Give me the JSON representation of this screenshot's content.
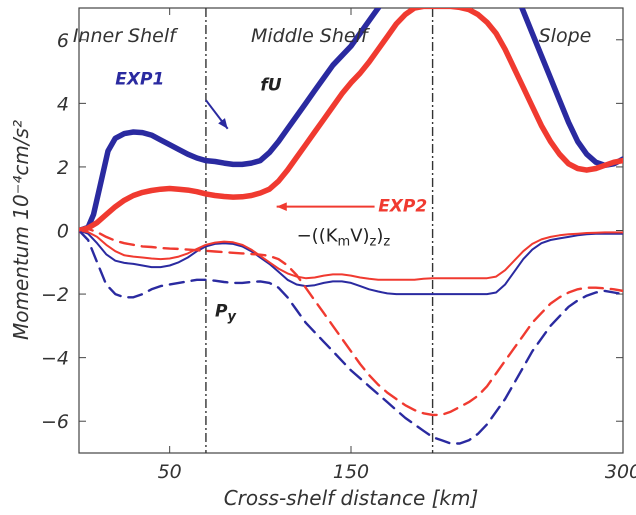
{
  "chart_data": {
    "type": "line",
    "xlabel": "Cross-shelf distance [km]",
    "ylabel": "Momentum 10⁻⁴cm/s²",
    "xlim": [
      0,
      300
    ],
    "ylim": [
      -7,
      7
    ],
    "x_ticks": [
      {
        "value": 50,
        "label": "50"
      },
      {
        "value": 150,
        "label": "150"
      },
      {
        "value": 300,
        "label": "300"
      }
    ],
    "y_ticks": [
      {
        "value": 6,
        "label": "6"
      },
      {
        "value": 4,
        "label": "4"
      },
      {
        "value": 2,
        "label": "2"
      },
      {
        "value": 0,
        "label": "0"
      },
      {
        "value": -2,
        "label": "−2"
      },
      {
        "value": -4,
        "label": "−4"
      },
      {
        "value": -6,
        "label": "−6"
      }
    ],
    "grid": false,
    "dividers": [
      70,
      195
    ],
    "regions": [
      {
        "label": "Inner Shelf",
        "x": 25
      },
      {
        "label": "Middle Shelf",
        "x": 127
      },
      {
        "label": "Slope",
        "x": 268
      }
    ],
    "colors": {
      "exp1": "#2a2aa0",
      "exp2": "#f03a30"
    },
    "series": [
      {
        "group": "fU",
        "experiment": "EXP1",
        "style": "thick-solid",
        "x": [
          0,
          5,
          8,
          12,
          16,
          20,
          25,
          30,
          35,
          40,
          45,
          50,
          55,
          60,
          65,
          70,
          75,
          80,
          85,
          90,
          95,
          100,
          105,
          110,
          115,
          120,
          125,
          130,
          135,
          140,
          145,
          150,
          155,
          160,
          165,
          170,
          175,
          180
        ],
        "y": [
          0,
          0.1,
          0.5,
          1.5,
          2.5,
          2.9,
          3.05,
          3.1,
          3.08,
          3.0,
          2.85,
          2.7,
          2.55,
          2.4,
          2.28,
          2.2,
          2.17,
          2.12,
          2.08,
          2.08,
          2.12,
          2.2,
          2.45,
          2.8,
          3.2,
          3.6,
          4.0,
          4.4,
          4.8,
          5.2,
          5.5,
          5.8,
          6.2,
          6.6,
          7.0,
          7.4,
          7.8,
          8.2
        ]
      },
      {
        "group": "fU",
        "experiment": "EXP1",
        "style": "thick-solid",
        "x": [
          240,
          245,
          250,
          255,
          260,
          265,
          270,
          275,
          280,
          285,
          290,
          295,
          300
        ],
        "y": [
          7.6,
          6.9,
          6.2,
          5.5,
          4.8,
          4.1,
          3.4,
          2.8,
          2.4,
          2.15,
          2.05,
          2.1,
          2.25
        ]
      },
      {
        "group": "fU",
        "experiment": "EXP2",
        "style": "thick-solid",
        "x": [
          0,
          5,
          10,
          15,
          20,
          25,
          30,
          35,
          40,
          45,
          50,
          55,
          60,
          65,
          70,
          75,
          80,
          85,
          90,
          95,
          100,
          105,
          110,
          115,
          120,
          125,
          130,
          135,
          140,
          145,
          150,
          155,
          160,
          165,
          170,
          175,
          180,
          185,
          190,
          195,
          200,
          205,
          210,
          215,
          220,
          225,
          230,
          235,
          240,
          245,
          250,
          255,
          260,
          265,
          270,
          275,
          280,
          285,
          290,
          295,
          300
        ],
        "y": [
          0,
          0.08,
          0.25,
          0.5,
          0.75,
          0.95,
          1.1,
          1.2,
          1.26,
          1.3,
          1.32,
          1.3,
          1.27,
          1.22,
          1.15,
          1.1,
          1.07,
          1.05,
          1.06,
          1.1,
          1.18,
          1.3,
          1.55,
          1.9,
          2.3,
          2.7,
          3.1,
          3.5,
          3.9,
          4.3,
          4.65,
          4.95,
          5.3,
          5.7,
          6.1,
          6.5,
          6.8,
          7.0,
          7.05,
          7.05,
          7.05,
          7.05,
          7.02,
          6.95,
          6.8,
          6.55,
          6.2,
          5.7,
          5.1,
          4.5,
          3.9,
          3.3,
          2.8,
          2.4,
          2.1,
          1.95,
          1.9,
          1.95,
          2.05,
          2.15,
          2.2
        ]
      },
      {
        "group": "-((KmV)z)z",
        "experiment": "EXP1",
        "style": "thin-solid",
        "x": [
          0,
          5,
          10,
          15,
          20,
          25,
          30,
          35,
          40,
          45,
          50,
          55,
          60,
          65,
          70,
          75,
          80,
          85,
          90,
          95,
          100,
          105,
          110,
          115,
          120,
          125,
          130,
          135,
          140,
          145,
          150,
          155,
          160,
          165,
          170,
          175,
          180,
          185,
          190,
          195,
          200,
          205,
          210,
          215,
          220,
          225,
          230,
          235,
          240,
          245,
          250,
          255,
          260,
          265,
          270,
          275,
          280,
          285,
          290,
          295,
          300
        ],
        "y": [
          0,
          -0.1,
          -0.4,
          -0.75,
          -0.95,
          -1.02,
          -1.05,
          -1.1,
          -1.15,
          -1.15,
          -1.1,
          -1.0,
          -0.85,
          -0.65,
          -0.5,
          -0.42,
          -0.4,
          -0.42,
          -0.5,
          -0.65,
          -0.85,
          -1.05,
          -1.3,
          -1.55,
          -1.7,
          -1.75,
          -1.72,
          -1.65,
          -1.6,
          -1.6,
          -1.65,
          -1.75,
          -1.85,
          -1.92,
          -1.98,
          -2.0,
          -2.0,
          -2.0,
          -2.0,
          -2.0,
          -2.0,
          -2.0,
          -2.0,
          -2.0,
          -2.0,
          -2.0,
          -1.95,
          -1.7,
          -1.3,
          -0.9,
          -0.6,
          -0.4,
          -0.3,
          -0.25,
          -0.2,
          -0.15,
          -0.12,
          -0.1,
          -0.1,
          -0.1,
          -0.1
        ]
      },
      {
        "group": "-((KmV)z)z",
        "experiment": "EXP2",
        "style": "thin-solid",
        "x": [
          0,
          5,
          10,
          15,
          20,
          25,
          30,
          35,
          40,
          45,
          50,
          55,
          60,
          65,
          70,
          75,
          80,
          85,
          90,
          95,
          100,
          105,
          110,
          115,
          120,
          125,
          130,
          135,
          140,
          145,
          150,
          155,
          160,
          165,
          170,
          175,
          180,
          185,
          190,
          195,
          200,
          205,
          210,
          215,
          220,
          225,
          230,
          235,
          240,
          245,
          250,
          255,
          260,
          265,
          270,
          275,
          280,
          285,
          290,
          295,
          300
        ],
        "y": [
          0,
          -0.05,
          -0.2,
          -0.45,
          -0.65,
          -0.78,
          -0.82,
          -0.85,
          -0.88,
          -0.9,
          -0.88,
          -0.82,
          -0.72,
          -0.58,
          -0.45,
          -0.38,
          -0.35,
          -0.37,
          -0.45,
          -0.6,
          -0.8,
          -1.0,
          -1.2,
          -1.35,
          -1.45,
          -1.5,
          -1.48,
          -1.42,
          -1.38,
          -1.38,
          -1.42,
          -1.48,
          -1.52,
          -1.55,
          -1.55,
          -1.55,
          -1.55,
          -1.55,
          -1.52,
          -1.5,
          -1.5,
          -1.5,
          -1.5,
          -1.5,
          -1.5,
          -1.5,
          -1.45,
          -1.25,
          -0.95,
          -0.65,
          -0.42,
          -0.28,
          -0.2,
          -0.15,
          -0.12,
          -0.1,
          -0.08,
          -0.07,
          -0.06,
          -0.06,
          -0.06
        ]
      },
      {
        "group": "Py",
        "experiment": "EXP1",
        "style": "dashed",
        "x": [
          0,
          5,
          10,
          15,
          20,
          25,
          30,
          35,
          40,
          45,
          50,
          55,
          60,
          65,
          70,
          75,
          80,
          85,
          90,
          95,
          100,
          105,
          110,
          115,
          120,
          125,
          130,
          135,
          140,
          145,
          150,
          155,
          160,
          165,
          170,
          175,
          180,
          185,
          190,
          195,
          200,
          205,
          210,
          215,
          220,
          225,
          230,
          235,
          240,
          245,
          250,
          255,
          260,
          265,
          270,
          275,
          280,
          285,
          290,
          295,
          300
        ],
        "y": [
          0,
          -0.3,
          -1.0,
          -1.7,
          -2.0,
          -2.1,
          -2.1,
          -2.0,
          -1.85,
          -1.75,
          -1.7,
          -1.65,
          -1.6,
          -1.55,
          -1.55,
          -1.58,
          -1.62,
          -1.65,
          -1.65,
          -1.62,
          -1.6,
          -1.65,
          -1.8,
          -2.1,
          -2.5,
          -2.9,
          -3.2,
          -3.5,
          -3.8,
          -4.1,
          -4.4,
          -4.65,
          -4.9,
          -5.15,
          -5.4,
          -5.65,
          -5.9,
          -6.1,
          -6.3,
          -6.5,
          -6.6,
          -6.7,
          -6.7,
          -6.6,
          -6.4,
          -6.1,
          -5.7,
          -5.3,
          -4.8,
          -4.3,
          -3.8,
          -3.4,
          -3.0,
          -2.7,
          -2.4,
          -2.2,
          -2.05,
          -1.95,
          -1.9,
          -1.95,
          -2.0
        ]
      },
      {
        "group": "Py",
        "experiment": "EXP2",
        "style": "dashed",
        "x": [
          0,
          5,
          10,
          15,
          20,
          25,
          30,
          35,
          40,
          45,
          50,
          55,
          60,
          65,
          70,
          75,
          80,
          85,
          90,
          95,
          100,
          105,
          110,
          115,
          120,
          125,
          130,
          135,
          140,
          145,
          150,
          155,
          160,
          165,
          170,
          175,
          180,
          185,
          190,
          195,
          200,
          205,
          210,
          215,
          220,
          225,
          230,
          235,
          240,
          245,
          250,
          255,
          260,
          265,
          270,
          275,
          280,
          285,
          290,
          295,
          300
        ],
        "y": [
          0,
          0.05,
          -0.05,
          -0.2,
          -0.32,
          -0.4,
          -0.45,
          -0.5,
          -0.52,
          -0.55,
          -0.57,
          -0.58,
          -0.6,
          -0.62,
          -0.64,
          -0.66,
          -0.68,
          -0.7,
          -0.72,
          -0.74,
          -0.76,
          -0.8,
          -0.9,
          -1.1,
          -1.4,
          -1.8,
          -2.2,
          -2.6,
          -3.0,
          -3.4,
          -3.8,
          -4.2,
          -4.55,
          -4.85,
          -5.1,
          -5.3,
          -5.5,
          -5.65,
          -5.75,
          -5.8,
          -5.8,
          -5.7,
          -5.55,
          -5.4,
          -5.2,
          -4.9,
          -4.5,
          -4.1,
          -3.7,
          -3.3,
          -2.9,
          -2.6,
          -2.3,
          -2.1,
          -1.95,
          -1.85,
          -1.8,
          -1.8,
          -1.82,
          -1.85,
          -1.9
        ]
      }
    ],
    "annotations": [
      {
        "text": "EXP1",
        "color": "#2a2aa0",
        "x": 20,
        "y": 4.6
      },
      {
        "text": "fU",
        "x": 100,
        "y": 4.4
      },
      {
        "text": "EXP2",
        "color": "#f03a30",
        "x": 165,
        "y": 0.6
      },
      {
        "text": "−((K",
        "sub_m": "m",
        "mid": "V)",
        "sub_z": "z",
        "tail": ")",
        "tail_sub": "z",
        "x": 120,
        "y": -0.35
      },
      {
        "text": "P",
        "sub": "y",
        "x": 75,
        "y": -2.7
      }
    ]
  }
}
